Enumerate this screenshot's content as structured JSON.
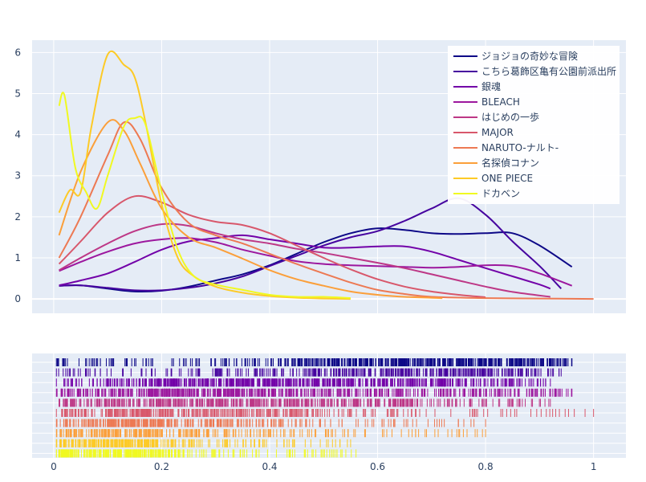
{
  "chart_data": [
    {
      "type": "line",
      "title": "",
      "xlabel": "",
      "ylabel": "",
      "xlim": [
        -0.04,
        1.06
      ],
      "ylim": [
        -0.35,
        6.3
      ],
      "x_ticks": [
        0,
        0.2,
        0.4,
        0.6,
        0.8,
        1
      ],
      "x_tick_labels": [
        "0",
        "0.2",
        "0.4",
        "0.6",
        "0.8",
        "1"
      ],
      "y_ticks": [
        0,
        1,
        2,
        3,
        4,
        5,
        6
      ],
      "y_tick_labels": [
        "0",
        "1",
        "2",
        "3",
        "4",
        "5",
        "6"
      ],
      "grid": true,
      "legend_position": "top-right",
      "series": [
        {
          "name": "ジョジョの奇妙な冒険",
          "color": "#0d0887",
          "x": [
            0.01,
            0.05,
            0.1,
            0.15,
            0.2,
            0.25,
            0.3,
            0.35,
            0.4,
            0.45,
            0.5,
            0.55,
            0.6,
            0.65,
            0.7,
            0.75,
            0.8,
            0.85,
            0.9,
            0.96
          ],
          "y": [
            0.32,
            0.33,
            0.25,
            0.18,
            0.2,
            0.3,
            0.45,
            0.6,
            0.82,
            1.1,
            1.38,
            1.6,
            1.72,
            1.68,
            1.6,
            1.58,
            1.6,
            1.6,
            1.3,
            0.78
          ]
        },
        {
          "name": "こちら葛飾区亀有公園前派出所",
          "color": "#46039f",
          "x": [
            0.01,
            0.05,
            0.1,
            0.15,
            0.2,
            0.25,
            0.3,
            0.35,
            0.4,
            0.45,
            0.5,
            0.55,
            0.6,
            0.65,
            0.7,
            0.75,
            0.8,
            0.85,
            0.9,
            0.94
          ],
          "y": [
            0.32,
            0.33,
            0.27,
            0.21,
            0.21,
            0.27,
            0.38,
            0.55,
            0.8,
            1.05,
            1.3,
            1.5,
            1.65,
            1.9,
            2.2,
            2.45,
            2.05,
            1.4,
            0.8,
            0.25
          ]
        },
        {
          "name": "銀魂",
          "color": "#7201a8",
          "x": [
            0.01,
            0.05,
            0.1,
            0.15,
            0.2,
            0.25,
            0.3,
            0.35,
            0.4,
            0.45,
            0.5,
            0.55,
            0.6,
            0.65,
            0.7,
            0.75,
            0.8,
            0.85,
            0.9,
            0.92
          ],
          "y": [
            0.33,
            0.45,
            0.62,
            0.9,
            1.2,
            1.4,
            1.48,
            1.55,
            1.45,
            1.35,
            1.25,
            1.25,
            1.28,
            1.28,
            1.15,
            0.95,
            0.75,
            0.55,
            0.35,
            0.25
          ]
        },
        {
          "name": "BLEACH",
          "color": "#9c179e",
          "x": [
            0.01,
            0.05,
            0.1,
            0.15,
            0.2,
            0.25,
            0.3,
            0.35,
            0.4,
            0.45,
            0.5,
            0.55,
            0.6,
            0.65,
            0.7,
            0.75,
            0.8,
            0.85,
            0.9,
            0.96
          ],
          "y": [
            0.68,
            0.9,
            1.15,
            1.35,
            1.45,
            1.48,
            1.38,
            1.2,
            1.05,
            0.92,
            0.85,
            0.82,
            0.8,
            0.78,
            0.76,
            0.78,
            0.82,
            0.8,
            0.62,
            0.32
          ]
        },
        {
          "name": "はじめの一歩",
          "color": "#bd3786",
          "x": [
            0.01,
            0.05,
            0.1,
            0.15,
            0.2,
            0.25,
            0.3,
            0.35,
            0.4,
            0.45,
            0.5,
            0.55,
            0.6,
            0.65,
            0.7,
            0.75,
            0.8,
            0.85,
            0.92
          ],
          "y": [
            0.7,
            1.0,
            1.35,
            1.65,
            1.82,
            1.78,
            1.6,
            1.45,
            1.35,
            1.22,
            1.12,
            1.0,
            0.88,
            0.75,
            0.6,
            0.45,
            0.3,
            0.17,
            0.05
          ]
        },
        {
          "name": "MAJOR",
          "color": "#d8576b",
          "x": [
            0.01,
            0.05,
            0.1,
            0.15,
            0.2,
            0.25,
            0.3,
            0.35,
            0.4,
            0.45,
            0.5,
            0.55,
            0.6,
            0.65,
            0.7,
            0.75,
            0.8
          ],
          "y": [
            0.85,
            1.4,
            2.1,
            2.5,
            2.35,
            2.05,
            1.88,
            1.8,
            1.6,
            1.3,
            1.0,
            0.72,
            0.48,
            0.3,
            0.18,
            0.1,
            0.04
          ]
        },
        {
          "name": "NARUTO-ナルト-",
          "color": "#ed7953",
          "x": [
            0.01,
            0.05,
            0.1,
            0.13,
            0.16,
            0.2,
            0.25,
            0.3,
            0.35,
            0.4,
            0.45,
            0.5,
            0.55,
            0.6,
            0.65,
            0.7,
            0.8,
            0.9,
            1.0
          ],
          "y": [
            1.0,
            2.0,
            3.5,
            4.3,
            3.9,
            2.7,
            1.85,
            1.55,
            1.35,
            1.1,
            0.85,
            0.62,
            0.4,
            0.22,
            0.12,
            0.05,
            0.02,
            0.01,
            0.0
          ]
        },
        {
          "name": "名探偵コナン",
          "color": "#fb9f3a",
          "x": [
            0.01,
            0.05,
            0.1,
            0.13,
            0.16,
            0.2,
            0.25,
            0.3,
            0.35,
            0.4,
            0.45,
            0.5,
            0.55,
            0.6,
            0.65,
            0.72
          ],
          "y": [
            1.55,
            3.1,
            4.3,
            4.1,
            3.3,
            2.2,
            1.5,
            1.25,
            0.98,
            0.7,
            0.48,
            0.32,
            0.18,
            0.1,
            0.05,
            0.02
          ]
        },
        {
          "name": "ONE PIECE",
          "color": "#fdca26",
          "x": [
            0.01,
            0.03,
            0.05,
            0.07,
            0.1,
            0.13,
            0.15,
            0.17,
            0.2,
            0.23,
            0.26,
            0.3,
            0.35,
            0.4,
            0.45,
            0.5,
            0.55
          ],
          "y": [
            2.1,
            2.65,
            2.6,
            4.2,
            5.95,
            5.7,
            5.4,
            4.3,
            2.3,
            1.0,
            0.55,
            0.3,
            0.15,
            0.07,
            0.03,
            0.01,
            0.0
          ]
        },
        {
          "name": "ドカベン",
          "color": "#f0f921",
          "x": [
            0.01,
            0.02,
            0.04,
            0.06,
            0.08,
            0.1,
            0.13,
            0.15,
            0.17,
            0.2,
            0.23,
            0.26,
            0.3,
            0.35,
            0.4,
            0.45,
            0.5,
            0.55
          ],
          "y": [
            4.7,
            4.95,
            3.2,
            2.6,
            2.2,
            3.0,
            4.2,
            4.4,
            4.25,
            2.6,
            1.2,
            0.55,
            0.35,
            0.22,
            0.1,
            0.05,
            0.05,
            0.02
          ]
        }
      ]
    },
    {
      "type": "rug",
      "title": "",
      "xlim": [
        -0.04,
        1.06
      ],
      "x_ticks": [
        0,
        0.2,
        0.4,
        0.6,
        0.8,
        1
      ],
      "x_tick_labels": [
        "0",
        "0.2",
        "0.4",
        "0.6",
        "0.8",
        "1"
      ],
      "grid": true,
      "series_ranges": [
        {
          "name": "ジョジョの奇妙な冒険",
          "min": 0.005,
          "max": 0.96
        },
        {
          "name": "こちら葛飾区亀有公園前派出所",
          "min": 0.005,
          "max": 0.94
        },
        {
          "name": "銀魂",
          "min": 0.005,
          "max": 0.92
        },
        {
          "name": "BLEACH",
          "min": 0.005,
          "max": 0.96
        },
        {
          "name": "はじめの一歩",
          "min": 0.01,
          "max": 0.92
        },
        {
          "name": "MAJOR",
          "min": 0.005,
          "max": 1.0
        },
        {
          "name": "NARUTO-ナルト-",
          "min": 0.005,
          "max": 0.8
        },
        {
          "name": "名探偵コナン",
          "min": 0.005,
          "max": 0.8
        },
        {
          "name": "ONE PIECE",
          "min": 0.005,
          "max": 0.55
        },
        {
          "name": "ドカベン",
          "min": 0.005,
          "max": 0.56
        }
      ]
    }
  ]
}
